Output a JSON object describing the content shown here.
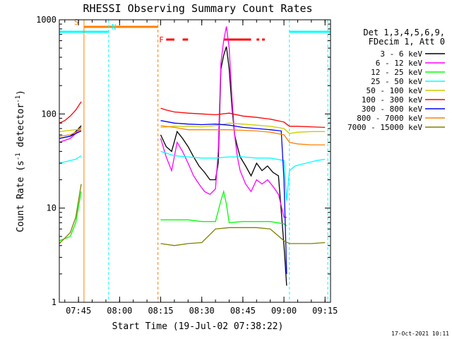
{
  "chart_data": {
    "type": "line",
    "title": "RHESSI Observing Summary Count Rates",
    "xlabel": "Start Time (19-Jul-02 07:38:22)",
    "ylabel_prefix": "Count Rate (s",
    "ylabel_suffix": " detector",
    "ylabel_sup": "-1",
    "yscale": "log",
    "ylim": [
      1,
      1000
    ],
    "xlim": [
      "07:38",
      "09:17"
    ],
    "x_ticks": [
      "07:45",
      "08:00",
      "08:15",
      "08:30",
      "08:45",
      "09:00",
      "09:15"
    ],
    "y_ticks": [
      "1",
      "10",
      "100",
      "1000"
    ],
    "timestamp": "17-Oct-2021 10:11",
    "legend_header": [
      "Det 1,3,4,5,6,9,",
      "FDecim 1, Att 0"
    ],
    "legend_position": "right",
    "flags": [
      {
        "label": "S",
        "color": "#ff8000",
        "start": "07:47",
        "end": "08:14"
      },
      {
        "label": "N",
        "color": "#00ffff",
        "start": "07:38",
        "end": "07:56"
      },
      {
        "label": "N",
        "color": "#00ffff",
        "start": "09:02",
        "end": "09:17"
      },
      {
        "label": "F",
        "color": "#ff0000",
        "segments": [
          [
            "08:17",
            "08:20"
          ],
          [
            "08:23",
            "08:25"
          ],
          [
            "08:38",
            "08:48"
          ],
          [
            "08:50",
            "08:51"
          ],
          [
            "08:52",
            "08:53"
          ]
        ]
      }
    ],
    "vlines": [
      {
        "time": "07:47",
        "color": "#ff8000",
        "style": "solid"
      },
      {
        "time": "07:56",
        "color": "#00ffff",
        "style": "dashed"
      },
      {
        "time": "08:14",
        "color": "#ff8000",
        "style": "dashed"
      },
      {
        "time": "09:02",
        "color": "#00ffff",
        "style": "dashed"
      },
      {
        "time": "09:16",
        "color": "#00ffff",
        "style": "dashed"
      }
    ],
    "series": [
      {
        "name": "3 - 6 keV",
        "color": "#000000",
        "segments": [
          [
            [
              "07:38",
              55
            ],
            [
              "07:42",
              58
            ],
            [
              "07:44",
              65
            ],
            [
              "07:46",
              75
            ]
          ],
          [
            [
              "08:15",
              60
            ],
            [
              "08:17",
              45
            ],
            [
              "08:19",
              40
            ],
            [
              "08:21",
              65
            ],
            [
              "08:23",
              55
            ],
            [
              "08:25",
              45
            ],
            [
              "08:27",
              35
            ],
            [
              "08:29",
              28
            ],
            [
              "08:31",
              24
            ],
            [
              "08:33",
              20
            ],
            [
              "08:35",
              20
            ],
            [
              "08:36",
              30
            ],
            [
              "08:37",
              300
            ],
            [
              "08:38",
              420
            ],
            [
              "08:39",
              520
            ],
            [
              "08:40",
              300
            ],
            [
              "08:41",
              120
            ],
            [
              "08:42",
              60
            ],
            [
              "08:43",
              45
            ],
            [
              "08:44",
              35
            ],
            [
              "08:46",
              28
            ],
            [
              "08:48",
              22
            ],
            [
              "08:50",
              30
            ],
            [
              "08:52",
              25
            ],
            [
              "08:54",
              28
            ],
            [
              "08:56",
              24
            ],
            [
              "08:58",
              22
            ],
            [
              "09:00",
              4
            ],
            [
              "09:01",
              1.5
            ]
          ]
        ]
      },
      {
        "name": "6 - 12 keV",
        "color": "#ff00ff",
        "segments": [
          [
            [
              "07:38",
              50
            ],
            [
              "07:42",
              55
            ],
            [
              "07:44",
              62
            ],
            [
              "07:46",
              72
            ]
          ],
          [
            [
              "08:15",
              55
            ],
            [
              "08:17",
              35
            ],
            [
              "08:19",
              25
            ],
            [
              "08:21",
              50
            ],
            [
              "08:23",
              40
            ],
            [
              "08:25",
              30
            ],
            [
              "08:27",
              22
            ],
            [
              "08:29",
              18
            ],
            [
              "08:31",
              15
            ],
            [
              "08:33",
              14
            ],
            [
              "08:35",
              16
            ],
            [
              "08:36",
              40
            ],
            [
              "08:37",
              350
            ],
            [
              "08:38",
              600
            ],
            [
              "08:39",
              850
            ],
            [
              "08:40",
              500
            ],
            [
              "08:41",
              150
            ],
            [
              "08:42",
              60
            ],
            [
              "08:43",
              35
            ],
            [
              "08:44",
              25
            ],
            [
              "08:46",
              18
            ],
            [
              "08:48",
              15
            ],
            [
              "08:50",
              20
            ],
            [
              "08:52",
              18
            ],
            [
              "08:54",
              20
            ],
            [
              "08:56",
              17
            ],
            [
              "08:58",
              14
            ],
            [
              "09:00",
              8
            ],
            [
              "09:01",
              8
            ]
          ]
        ]
      },
      {
        "name": "12 - 25 keV",
        "color": "#00ff00",
        "segments": [
          [
            [
              "07:38",
              4.5
            ],
            [
              "07:42",
              5
            ],
            [
              "07:44",
              7
            ],
            [
              "07:46",
              15
            ]
          ],
          [
            [
              "08:15",
              7.5
            ],
            [
              "08:20",
              7.5
            ],
            [
              "08:25",
              7.5
            ],
            [
              "08:30",
              7.2
            ],
            [
              "08:35",
              7.2
            ],
            [
              "08:37",
              12
            ],
            [
              "08:38",
              15
            ],
            [
              "08:39",
              11
            ],
            [
              "08:40",
              7
            ],
            [
              "08:45",
              7.2
            ],
            [
              "08:50",
              7.2
            ],
            [
              "08:55",
              7.2
            ],
            [
              "09:00",
              6.8
            ],
            [
              "09:01",
              6.5
            ]
          ]
        ]
      },
      {
        "name": "25 - 50 keV",
        "color": "#00ffff",
        "segments": [
          [
            [
              "07:38",
              30
            ],
            [
              "07:42",
              32
            ],
            [
              "07:44",
              33
            ],
            [
              "07:46",
              36
            ]
          ],
          [
            [
              "08:15",
              40
            ],
            [
              "08:20",
              36
            ],
            [
              "08:25",
              35
            ],
            [
              "08:30",
              34
            ],
            [
              "08:35",
              34
            ],
            [
              "08:40",
              35
            ],
            [
              "08:45",
              35
            ],
            [
              "08:50",
              34
            ],
            [
              "08:55",
              34
            ],
            [
              "09:00",
              32
            ],
            [
              "09:01",
              12
            ],
            [
              "09:02",
              25
            ],
            [
              "09:04",
              28
            ],
            [
              "09:08",
              30
            ],
            [
              "09:12",
              32
            ],
            [
              "09:15",
              33
            ]
          ]
        ]
      },
      {
        "name": "50 - 100 keV",
        "color": "#cccc00",
        "segments": [
          [
            [
              "07:38",
              65
            ],
            [
              "07:42",
              67
            ],
            [
              "07:44",
              68
            ],
            [
              "07:46",
              70
            ]
          ],
          [
            [
              "08:15",
              72
            ],
            [
              "08:20",
              74
            ],
            [
              "08:25",
              74
            ],
            [
              "08:30",
              73
            ],
            [
              "08:35",
              75
            ],
            [
              "08:40",
              80
            ],
            [
              "08:45",
              78
            ],
            [
              "08:50",
              76
            ],
            [
              "08:55",
              74
            ],
            [
              "09:00",
              70
            ],
            [
              "09:02",
              62
            ],
            [
              "09:05",
              64
            ],
            [
              "09:10",
              65
            ],
            [
              "09:15",
              65
            ]
          ]
        ]
      },
      {
        "name": "100 - 300 keV",
        "color": "#ff0000",
        "segments": [
          [
            [
              "07:38",
              80
            ],
            [
              "07:40",
              85
            ],
            [
              "07:42",
              95
            ],
            [
              "07:44",
              110
            ],
            [
              "07:46",
              135
            ]
          ],
          [
            [
              "08:15",
              115
            ],
            [
              "08:17",
              110
            ],
            [
              "08:20",
              105
            ],
            [
              "08:25",
              102
            ],
            [
              "08:30",
              100
            ],
            [
              "08:35",
              98
            ],
            [
              "08:40",
              102
            ],
            [
              "08:45",
              95
            ],
            [
              "08:50",
              92
            ],
            [
              "08:55",
              88
            ],
            [
              "09:00",
              82
            ],
            [
              "09:02",
              74
            ],
            [
              "09:05",
              74
            ],
            [
              "09:10",
              73
            ],
            [
              "09:15",
              72
            ]
          ]
        ]
      },
      {
        "name": "300 - 800 keV",
        "color": "#0000ff",
        "segments": [
          [
            [
              "07:38",
              55
            ],
            [
              "07:42",
              58
            ],
            [
              "07:44",
              62
            ],
            [
              "07:46",
              66
            ]
          ],
          [
            [
              "08:15",
              85
            ],
            [
              "08:20",
              80
            ],
            [
              "08:25",
              78
            ],
            [
              "08:30",
              77
            ],
            [
              "08:35",
              78
            ],
            [
              "08:40",
              76
            ],
            [
              "08:45",
              72
            ],
            [
              "08:50",
              70
            ],
            [
              "08:55",
              68
            ],
            [
              "08:59",
              66
            ],
            [
              "09:00",
              20
            ],
            [
              "09:01",
              2
            ]
          ]
        ]
      },
      {
        "name": "800 - 7000 keV",
        "color": "#ff8000",
        "segments": [
          [
            [
              "07:38",
              58
            ],
            [
              "07:42",
              60
            ],
            [
              "07:44",
              64
            ],
            [
              "07:46",
              68
            ]
          ],
          [
            [
              "08:15",
              75
            ],
            [
              "08:20",
              72
            ],
            [
              "08:25",
              68
            ],
            [
              "08:30",
              68
            ],
            [
              "08:35",
              68
            ],
            [
              "08:40",
              68
            ],
            [
              "08:45",
              67
            ],
            [
              "08:50",
              66
            ],
            [
              "08:55",
              64
            ],
            [
              "09:00",
              60
            ],
            [
              "09:02",
              50
            ],
            [
              "09:05",
              48
            ],
            [
              "09:10",
              47
            ],
            [
              "09:15",
              47
            ]
          ]
        ]
      },
      {
        "name": "7000 - 15000 keV",
        "color": "#808000",
        "segments": [
          [
            [
              "07:38",
              4.2
            ],
            [
              "07:40",
              4.8
            ],
            [
              "07:42",
              5.5
            ],
            [
              "07:44",
              8
            ],
            [
              "07:46",
              18
            ]
          ],
          [
            [
              "08:15",
              4.2
            ],
            [
              "08:20",
              4
            ],
            [
              "08:25",
              4.2
            ],
            [
              "08:30",
              4.3
            ],
            [
              "08:35",
              6
            ],
            [
              "08:40",
              6.2
            ],
            [
              "08:45",
              6.2
            ],
            [
              "08:50",
              6.2
            ],
            [
              "08:55",
              6
            ],
            [
              "09:00",
              4.5
            ],
            [
              "09:02",
              4.2
            ],
            [
              "09:05",
              4.2
            ],
            [
              "09:10",
              4.2
            ],
            [
              "09:15",
              4.3
            ]
          ]
        ]
      }
    ]
  }
}
